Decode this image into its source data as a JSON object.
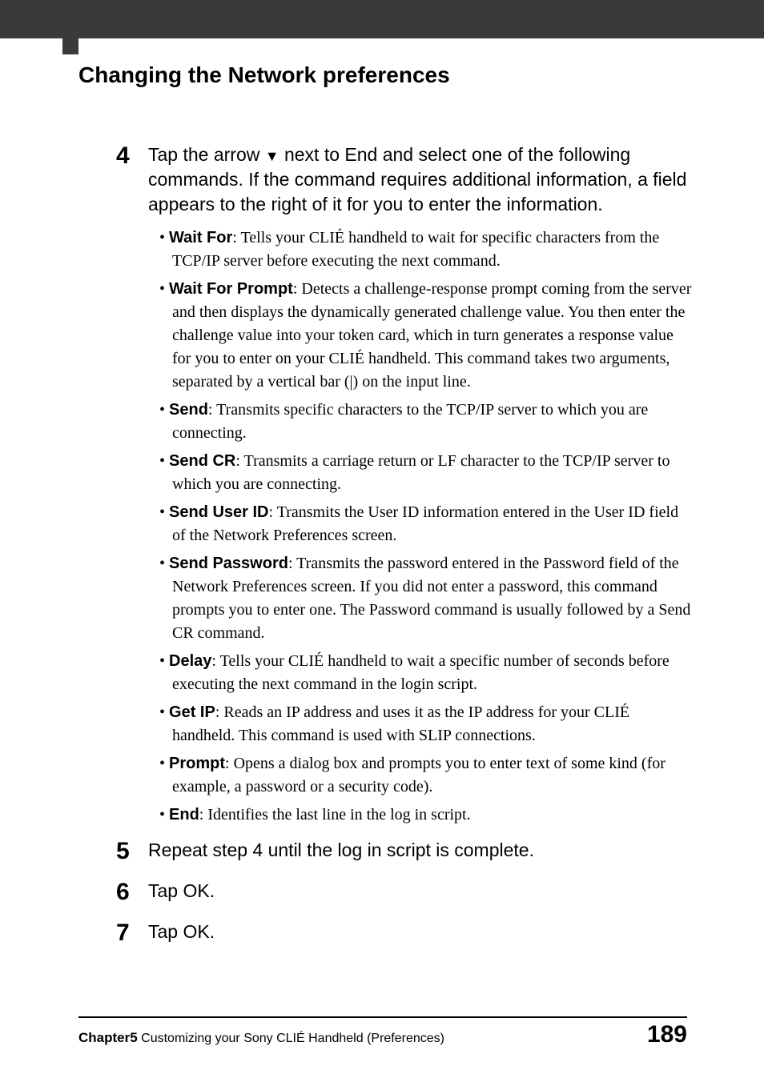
{
  "colors": {
    "header_bg": "#3a3a3a",
    "page_bg": "#ffffff",
    "text": "#000000",
    "footer_line": "#000000"
  },
  "typography": {
    "section_title_fontsize_pt": 21,
    "step_num_fontsize_pt": 22,
    "step_intro_fontsize_pt": 17,
    "body_fontsize_pt": 15,
    "footer_small_fontsize_pt": 12,
    "footer_page_fontsize_pt": 22,
    "sans_family": "Arial, Helvetica, sans-serif",
    "serif_family": "Georgia, Times New Roman, serif"
  },
  "section_title": "Changing the Network preferences",
  "steps": [
    {
      "num": "4",
      "intro_prefix": "Tap the arrow ",
      "intro_arrow": "▼",
      "intro_suffix": " next to End and select one of the following commands. If the command requires additional information, a field appears to the right of it for you to enter the information.",
      "bullets": [
        {
          "term": "Wait For",
          "desc": ": Tells your CLIÉ handheld to wait for specific characters from the TCP/IP server before executing the next command."
        },
        {
          "term": "Wait For Prompt",
          "desc": ": Detects a challenge-response prompt coming from the server and then displays the dynamically generated challenge value. You then enter the challenge value into your token card, which in turn generates a response value for you to enter on your CLIÉ handheld. This command takes two arguments, separated by a vertical bar (|) on the input line."
        },
        {
          "term": "Send",
          "desc": ": Transmits specific characters to the TCP/IP server to which you are connecting."
        },
        {
          "term": "Send CR",
          "desc": ": Transmits a carriage return or LF character to the TCP/IP server to which you are connecting."
        },
        {
          "term": "Send User ID",
          "desc": ": Transmits the User ID information entered in the User ID field of the Network Preferences screen."
        },
        {
          "term": "Send Password",
          "desc": ": Transmits the password entered in the Password field of the Network Preferences screen. If you did not enter a password, this command prompts you to enter one. The Password command is usually followed by a Send CR command."
        },
        {
          "term": "Delay",
          "desc": ": Tells your CLIÉ handheld to wait a specific number of seconds before executing the next command in the login script."
        },
        {
          "term": "Get IP",
          "desc": ": Reads an IP address and uses it as the IP address for your CLIÉ handheld. This command is used with SLIP connections."
        },
        {
          "term": "Prompt",
          "desc": ": Opens a dialog box and prompts you to enter text of some kind (for example, a password or a security code)."
        },
        {
          "term": "End",
          "desc": ": Identifies the last line in the log in script."
        }
      ]
    },
    {
      "num": "5",
      "intro_full": "Repeat step 4 until the log in script is complete."
    },
    {
      "num": "6",
      "intro_full": "Tap OK."
    },
    {
      "num": "7",
      "intro_full": "Tap OK."
    }
  ],
  "footer": {
    "chapter_label": "Chapter5",
    "chapter_text": "Customizing your Sony CLIÉ Handheld (Preferences)",
    "page_number": "189"
  }
}
